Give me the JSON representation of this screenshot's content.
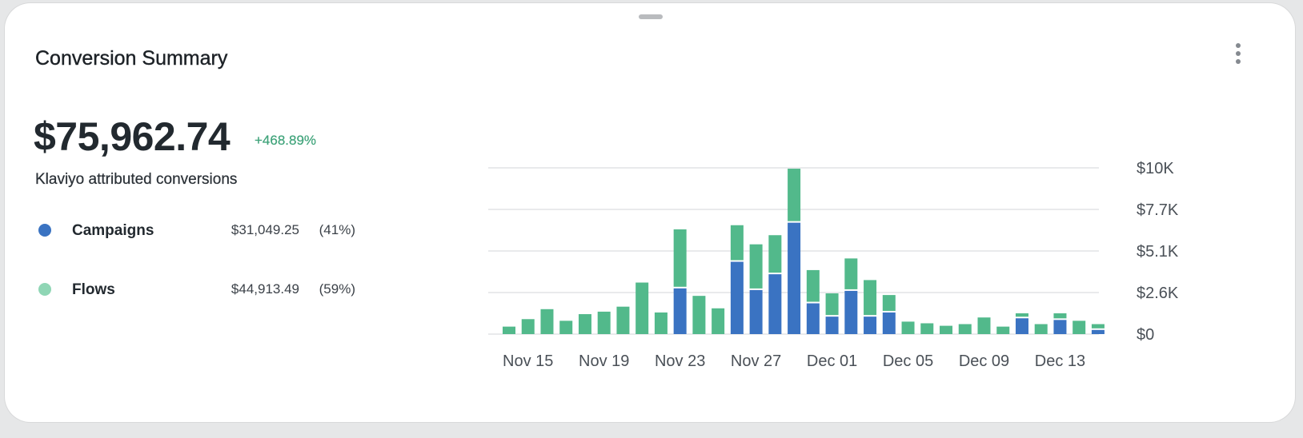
{
  "card": {
    "title": "Conversion Summary",
    "total": "$75,962.74",
    "change": "+468.89%",
    "subtitle": "Klaviyo attributed conversions"
  },
  "legend": [
    {
      "name": "Campaigns",
      "amount": "$31,049.25",
      "percent": "(41%)",
      "color": "#3a73c2"
    },
    {
      "name": "Flows",
      "amount": "$44,913.49",
      "percent": "(59%)",
      "color": "#8fd6b5"
    }
  ],
  "menu_icon": "more-vertical-icon",
  "chart_data": {
    "type": "bar",
    "stacked": true,
    "categories": [
      "Nov 14",
      "Nov 15",
      "Nov 16",
      "Nov 17",
      "Nov 18",
      "Nov 19",
      "Nov 20",
      "Nov 21",
      "Nov 22",
      "Nov 23",
      "Nov 24",
      "Nov 25",
      "Nov 26",
      "Nov 27",
      "Nov 28",
      "Nov 29",
      "Nov 30",
      "Dec 01",
      "Dec 02",
      "Dec 03",
      "Dec 04",
      "Dec 05",
      "Dec 06",
      "Dec 07",
      "Dec 08",
      "Dec 09",
      "Dec 10",
      "Dec 11",
      "Dec 12",
      "Dec 13",
      "Dec 14",
      "Dec 15"
    ],
    "series": [
      {
        "name": "Campaigns",
        "color": "#3a73c2",
        "values": [
          0,
          0,
          0,
          0,
          0,
          0,
          0,
          0,
          0,
          2750,
          0,
          0,
          4350,
          2650,
          3600,
          6700,
          1850,
          1050,
          2600,
          1050,
          1300,
          0,
          0,
          0,
          0,
          0,
          0,
          950,
          0,
          850,
          0,
          250
        ]
      },
      {
        "name": "Flows",
        "color": "#52b98b",
        "values": [
          450,
          900,
          1500,
          800,
          1200,
          1350,
          1650,
          3100,
          1300,
          3550,
          2300,
          1550,
          2200,
          2750,
          2350,
          3250,
          2000,
          1400,
          1950,
          2200,
          1050,
          750,
          650,
          500,
          600,
          1000,
          450,
          300,
          600,
          400,
          800,
          350
        ]
      }
    ],
    "x_tick_labels": [
      "Nov 15",
      "Nov 19",
      "Nov 23",
      "Nov 27",
      "Dec 01",
      "Dec 05",
      "Dec 09",
      "Dec 13"
    ],
    "y_tick_labels": [
      "$0",
      "$2.6K",
      "$5.1K",
      "$7.7K",
      "$10K"
    ],
    "ylim": [
      0,
      10000
    ],
    "y_axis_position": "right",
    "grid": true
  }
}
